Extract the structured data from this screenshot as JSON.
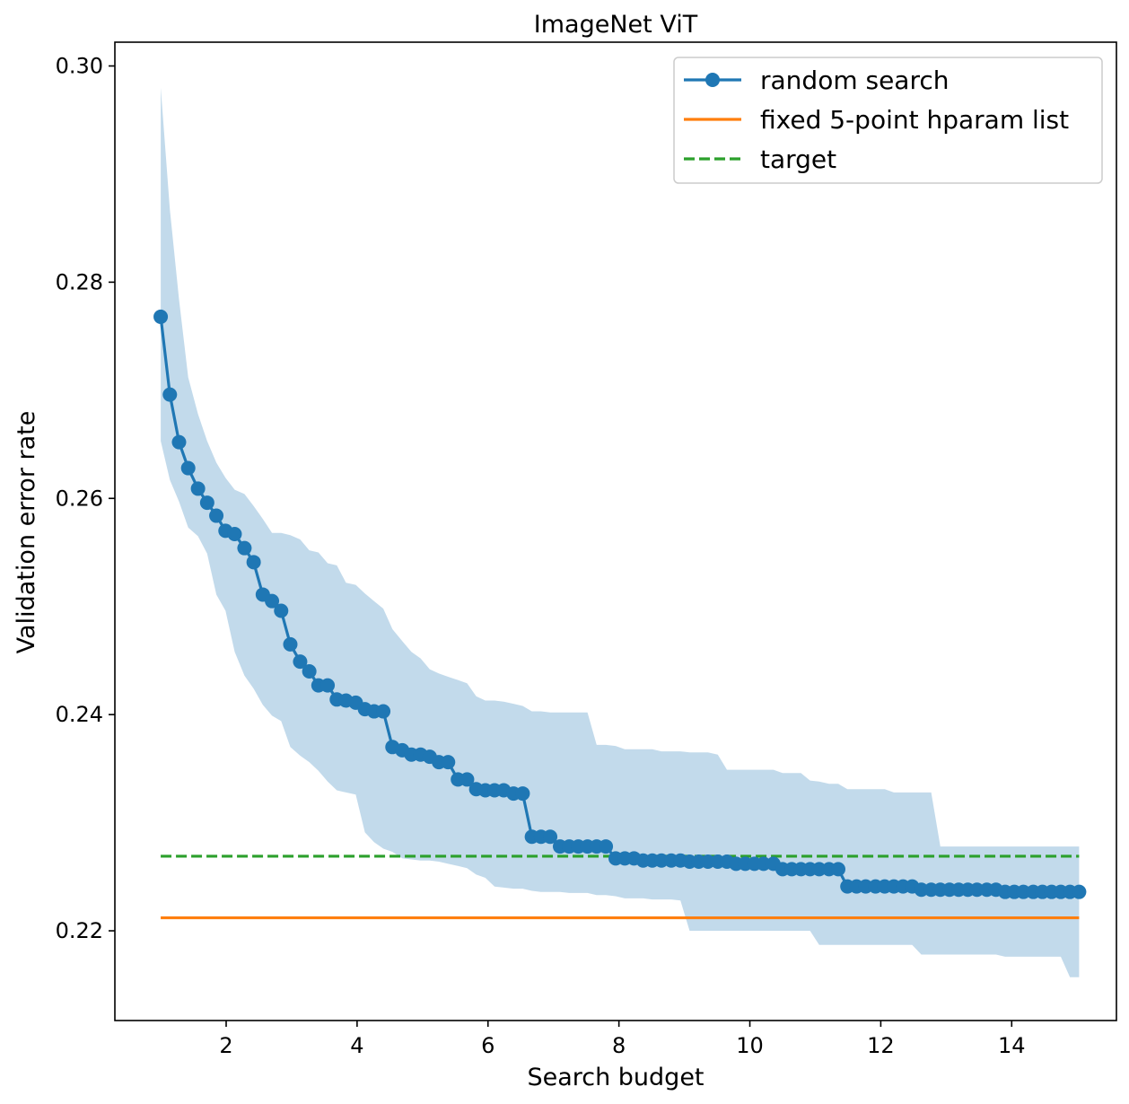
{
  "chart_data": {
    "type": "line",
    "title": "ImageNet ViT",
    "xlabel": "Search budget",
    "ylabel": "Validation error rate",
    "xlim": [
      0.3,
      15.6
    ],
    "ylim": [
      0.2117,
      0.3022
    ],
    "xticks": [
      2,
      4,
      6,
      8,
      10,
      12,
      14
    ],
    "yticks": [
      0.22,
      0.24,
      0.26,
      0.28,
      0.3
    ],
    "xtick_labels": [
      "2",
      "4",
      "6",
      "8",
      "10",
      "12",
      "14"
    ],
    "ytick_labels": [
      "0.22",
      "0.24",
      "0.26",
      "0.28",
      "0.30"
    ],
    "grid": false,
    "legend_position": "top-right",
    "series": [
      {
        "name": "random search",
        "kind": "line+markers",
        "color": "#1f77b4",
        "x": [
          1.0,
          1.14,
          1.28,
          1.42,
          1.57,
          1.71,
          1.85,
          1.99,
          2.13,
          2.28,
          2.42,
          2.56,
          2.7,
          2.84,
          2.98,
          3.13,
          3.27,
          3.41,
          3.55,
          3.69,
          3.83,
          3.98,
          4.12,
          4.26,
          4.4,
          4.54,
          4.69,
          4.83,
          4.97,
          5.11,
          5.25,
          5.39,
          5.54,
          5.68,
          5.82,
          5.96,
          6.1,
          6.24,
          6.39,
          6.53,
          6.67,
          6.81,
          6.95,
          7.1,
          7.24,
          7.38,
          7.52,
          7.66,
          7.8,
          7.95,
          8.09,
          8.23,
          8.37,
          8.51,
          8.65,
          8.8,
          8.94,
          9.08,
          9.22,
          9.36,
          9.51,
          9.65,
          9.79,
          9.93,
          10.07,
          10.21,
          10.36,
          10.5,
          10.64,
          10.78,
          10.92,
          11.06,
          11.21,
          11.35,
          11.49,
          11.63,
          11.77,
          11.92,
          12.06,
          12.2,
          12.34,
          12.48,
          12.62,
          12.77,
          12.91,
          13.05,
          13.19,
          13.33,
          13.47,
          13.62,
          13.76,
          13.9,
          14.04,
          14.18,
          14.33,
          14.47,
          14.61,
          14.75,
          14.89,
          15.03
        ],
        "values": [
          0.2768,
          0.2696,
          0.2652,
          0.2628,
          0.2609,
          0.2596,
          0.2584,
          0.257,
          0.2567,
          0.2554,
          0.2541,
          0.2511,
          0.2505,
          0.2496,
          0.2465,
          0.2449,
          0.244,
          0.2427,
          0.2427,
          0.2414,
          0.2413,
          0.2411,
          0.2405,
          0.2403,
          0.2403,
          0.237,
          0.2367,
          0.2363,
          0.2363,
          0.2361,
          0.2356,
          0.2356,
          0.234,
          0.234,
          0.2331,
          0.233,
          0.233,
          0.233,
          0.2327,
          0.2327,
          0.2287,
          0.2287,
          0.2287,
          0.2278,
          0.2278,
          0.2278,
          0.2278,
          0.2278,
          0.2278,
          0.2267,
          0.2267,
          0.2267,
          0.2265,
          0.2265,
          0.2265,
          0.2265,
          0.2265,
          0.2264,
          0.2264,
          0.2264,
          0.2264,
          0.2264,
          0.2262,
          0.2262,
          0.2262,
          0.2262,
          0.2262,
          0.2257,
          0.2257,
          0.2257,
          0.2257,
          0.2257,
          0.2257,
          0.2257,
          0.2241,
          0.2241,
          0.2241,
          0.2241,
          0.2241,
          0.2241,
          0.2241,
          0.2241,
          0.2238,
          0.2238,
          0.2238,
          0.2238,
          0.2238,
          0.2238,
          0.2238,
          0.2238,
          0.2238,
          0.2236,
          0.2236,
          0.2236,
          0.2236,
          0.2236,
          0.2236,
          0.2236,
          0.2236,
          0.2236
        ]
      },
      {
        "name": "fixed 5-point hparam list",
        "kind": "line",
        "color": "#ff7f0e",
        "x": [
          1.0,
          15.03
        ],
        "values": [
          0.2212,
          0.2212
        ]
      },
      {
        "name": "target",
        "kind": "dashed-line",
        "color": "#2ca02c",
        "x": [
          1.0,
          15.03
        ],
        "values": [
          0.2269,
          0.2269
        ]
      }
    ],
    "band": {
      "color": "#1f77b4",
      "opacity": 0.27,
      "x": [
        1.0,
        1.14,
        1.28,
        1.42,
        1.57,
        1.71,
        1.85,
        1.99,
        2.13,
        2.28,
        2.42,
        2.56,
        2.7,
        2.84,
        2.98,
        3.13,
        3.27,
        3.41,
        3.55,
        3.69,
        3.83,
        3.98,
        4.12,
        4.26,
        4.4,
        4.54,
        4.69,
        4.83,
        4.97,
        5.11,
        5.25,
        5.39,
        5.54,
        5.68,
        5.82,
        5.96,
        6.1,
        6.24,
        6.39,
        6.53,
        6.67,
        6.81,
        6.95,
        7.1,
        7.24,
        7.38,
        7.52,
        7.66,
        7.8,
        7.95,
        8.09,
        8.23,
        8.37,
        8.51,
        8.65,
        8.8,
        8.94,
        9.08,
        9.22,
        9.36,
        9.51,
        9.65,
        9.79,
        9.93,
        10.07,
        10.21,
        10.36,
        10.5,
        10.64,
        10.78,
        10.92,
        11.06,
        11.21,
        11.35,
        11.49,
        11.63,
        11.77,
        11.92,
        12.06,
        12.2,
        12.34,
        12.48,
        12.62,
        12.77,
        12.91,
        13.05,
        13.19,
        13.33,
        13.47,
        13.62,
        13.76,
        13.9,
        14.04,
        14.18,
        14.33,
        14.47,
        14.61,
        14.75,
        14.89,
        15.03
      ],
      "upper": [
        0.298,
        0.2867,
        0.2784,
        0.2712,
        0.2678,
        0.2653,
        0.2633,
        0.2619,
        0.2608,
        0.2604,
        0.2593,
        0.2581,
        0.2568,
        0.2568,
        0.2566,
        0.2562,
        0.2552,
        0.255,
        0.254,
        0.2538,
        0.2522,
        0.252,
        0.2512,
        0.2505,
        0.2498,
        0.2479,
        0.2468,
        0.2458,
        0.2452,
        0.2442,
        0.2438,
        0.2435,
        0.2432,
        0.2429,
        0.2417,
        0.2413,
        0.2413,
        0.2412,
        0.241,
        0.2408,
        0.2403,
        0.2403,
        0.2402,
        0.2402,
        0.2402,
        0.2402,
        0.2402,
        0.2372,
        0.2372,
        0.2371,
        0.2368,
        0.2368,
        0.2368,
        0.2368,
        0.2366,
        0.2366,
        0.2366,
        0.2365,
        0.2365,
        0.2365,
        0.2363,
        0.2349,
        0.2349,
        0.2349,
        0.2349,
        0.2349,
        0.2349,
        0.2346,
        0.2346,
        0.2346,
        0.2339,
        0.2338,
        0.2336,
        0.2336,
        0.2331,
        0.2331,
        0.2331,
        0.2331,
        0.2331,
        0.2328,
        0.2328,
        0.2328,
        0.2328,
        0.2328,
        0.2278,
        0.2278,
        0.2278,
        0.2278,
        0.2278,
        0.2278,
        0.2278,
        0.2278,
        0.2278,
        0.2278,
        0.2278,
        0.2278,
        0.2278,
        0.2278,
        0.2278,
        0.2278
      ],
      "lower": [
        0.2653,
        0.2617,
        0.2597,
        0.2573,
        0.2565,
        0.2549,
        0.2511,
        0.2496,
        0.2458,
        0.2436,
        0.2424,
        0.2409,
        0.2399,
        0.2394,
        0.237,
        0.2362,
        0.2356,
        0.2348,
        0.2338,
        0.233,
        0.2328,
        0.2326,
        0.2291,
        0.2282,
        0.2276,
        0.2273,
        0.2267,
        0.2266,
        0.2265,
        0.2265,
        0.2264,
        0.2262,
        0.226,
        0.2258,
        0.2252,
        0.2249,
        0.2241,
        0.224,
        0.2239,
        0.2239,
        0.2237,
        0.2236,
        0.2236,
        0.2236,
        0.2235,
        0.2235,
        0.2235,
        0.2233,
        0.2233,
        0.2232,
        0.223,
        0.223,
        0.223,
        0.2229,
        0.2229,
        0.2229,
        0.2228,
        0.22,
        0.22,
        0.22,
        0.22,
        0.22,
        0.22,
        0.22,
        0.22,
        0.22,
        0.22,
        0.22,
        0.22,
        0.22,
        0.22,
        0.2187,
        0.2187,
        0.2187,
        0.2187,
        0.2187,
        0.2187,
        0.2187,
        0.2187,
        0.2187,
        0.2187,
        0.2187,
        0.2178,
        0.2178,
        0.2178,
        0.2178,
        0.2178,
        0.2178,
        0.2178,
        0.2178,
        0.2178,
        0.2176,
        0.2176,
        0.2176,
        0.2176,
        0.2176,
        0.2176,
        0.2176,
        0.2157,
        0.2157
      ]
    }
  }
}
